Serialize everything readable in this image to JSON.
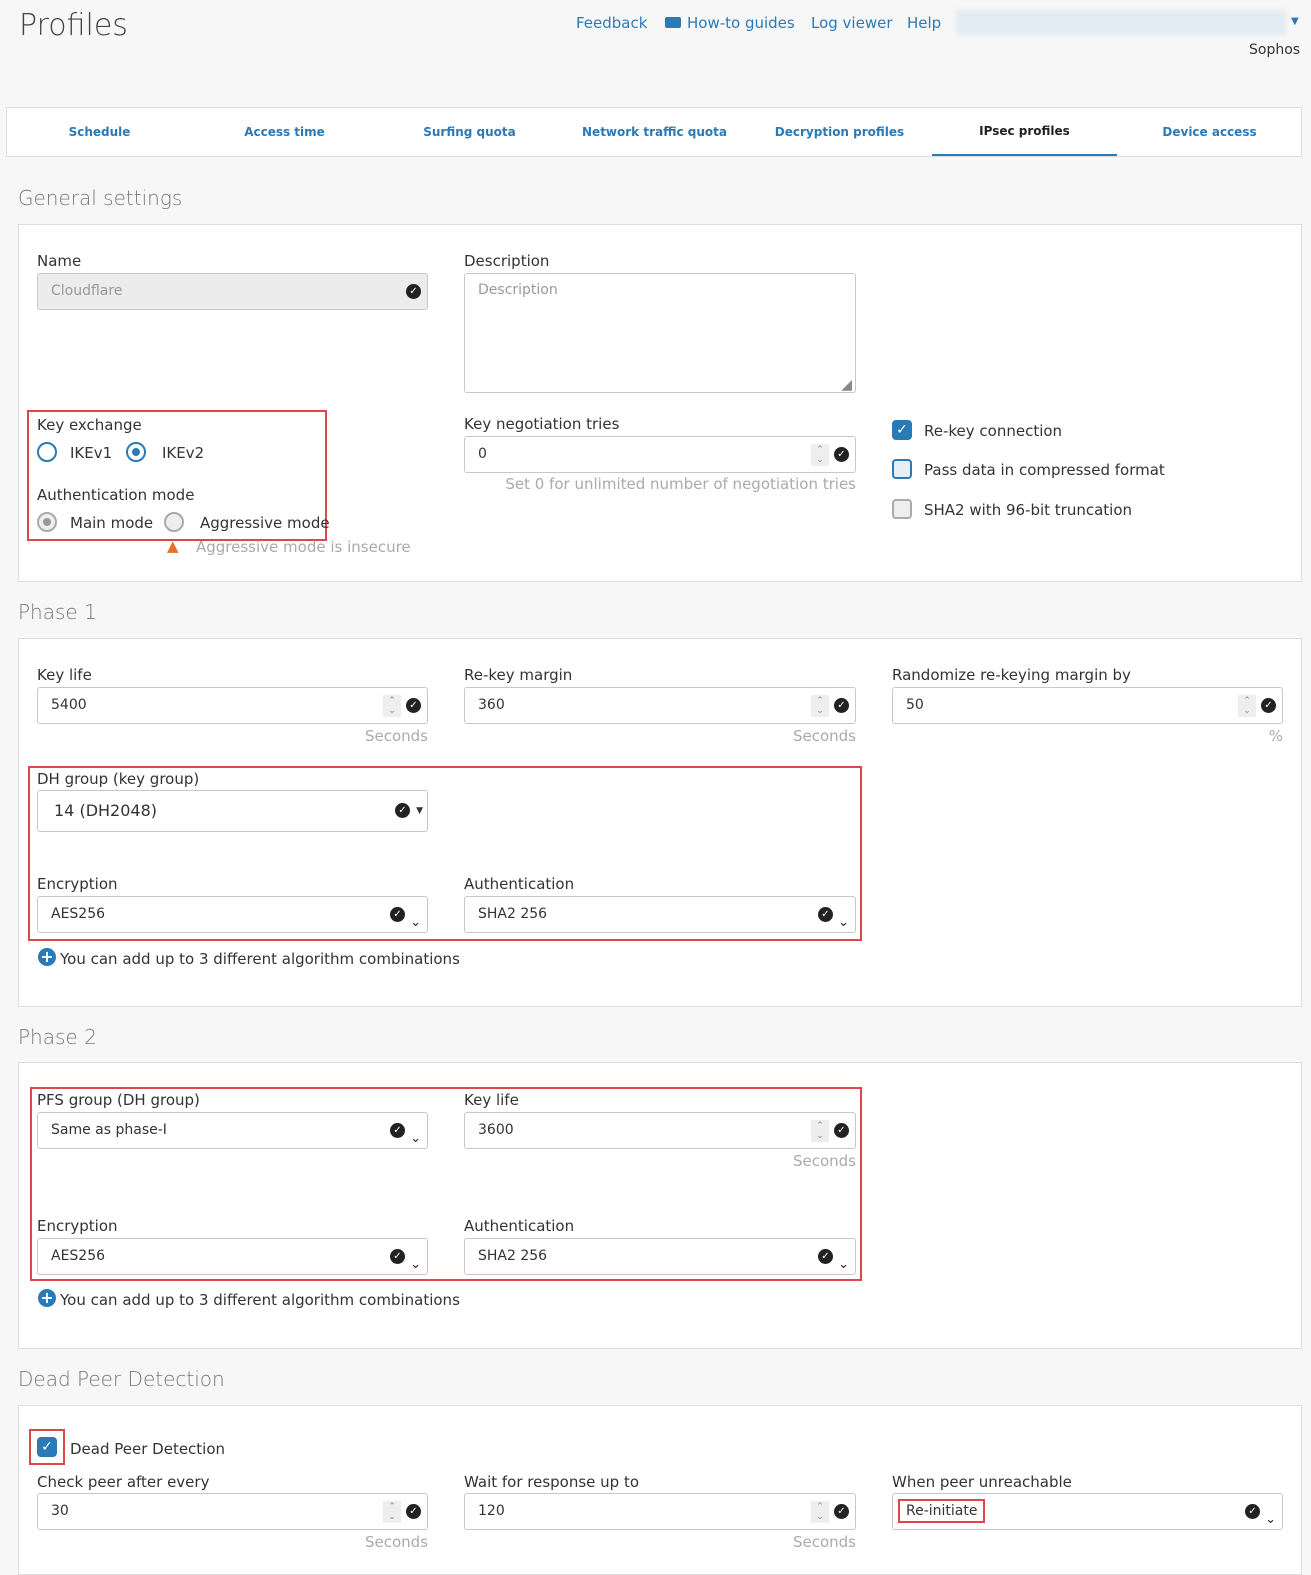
{
  "header": {
    "title": "Profiles",
    "links": [
      "Feedback",
      "How-to guides",
      "Log viewer",
      "Help"
    ],
    "user": "Sophos"
  },
  "tabs": [
    {
      "label": "Schedule"
    },
    {
      "label": "Access time"
    },
    {
      "label": "Surfing quota"
    },
    {
      "label": "Network traffic quota"
    },
    {
      "label": "Decryption profiles"
    },
    {
      "label": "IPsec profiles",
      "active": true
    },
    {
      "label": "Device access"
    }
  ],
  "general": {
    "title": "General settings",
    "name_label": "Name",
    "name_value": "Cloudflare",
    "desc_label": "Description",
    "desc_placeholder": "Description",
    "key_exchange_label": "Key exchange",
    "ikev1": "IKEv1",
    "ikev2": "IKEv2",
    "key_exchange_selected": "IKEv2",
    "auth_mode_label": "Authentication mode",
    "main_mode": "Main mode",
    "aggressive_mode": "Aggressive mode",
    "auth_mode_selected": "Main mode",
    "warning": "Aggressive mode is insecure",
    "tries_label": "Key negotiation tries",
    "tries_value": "0",
    "tries_hint": "Set 0 for unlimited number of negotiation tries",
    "rekey": "Re-key connection",
    "rekey_checked": true,
    "compress": "Pass data in compressed format",
    "compress_checked": true,
    "sha2": "SHA2 with 96-bit truncation",
    "sha2_checked": false
  },
  "phase1": {
    "title": "Phase 1",
    "keylife_label": "Key life",
    "keylife_value": "5400",
    "keylife_unit": "Seconds",
    "margin_label": "Re-key margin",
    "margin_value": "360",
    "margin_unit": "Seconds",
    "random_label": "Randomize re-keying margin by",
    "random_value": "50",
    "random_unit": "%",
    "dh_label": "DH group (key group)",
    "dh_value": "14 (DH2048)",
    "enc_label": "Encryption",
    "enc_value": "AES256",
    "auth_label": "Authentication",
    "auth_value": "SHA2 256",
    "add": "You can add up to 3 different algorithm combinations"
  },
  "phase2": {
    "title": "Phase 2",
    "pfs_label": "PFS group (DH group)",
    "pfs_value": "Same as phase-I",
    "keylife_label": "Key life",
    "keylife_value": "3600",
    "keylife_unit": "Seconds",
    "enc_label": "Encryption",
    "enc_value": "AES256",
    "auth_label": "Authentication",
    "auth_value": "SHA2 256",
    "add": "You can add up to 3 different algorithm combinations"
  },
  "dpd": {
    "title": "Dead Peer Detection",
    "checkbox": "Dead Peer Detection",
    "checked": true,
    "check_label": "Check peer after every",
    "check_value": "30",
    "check_unit": "Seconds",
    "wait_label": "Wait for response up to",
    "wait_value": "120",
    "wait_unit": "Seconds",
    "unreach_label": "When peer unreachable",
    "unreach_value": "Re-initiate"
  },
  "colors": {
    "accent": "#2a7ab8",
    "highlight": "#e0454a",
    "warning": "#e8702a"
  }
}
